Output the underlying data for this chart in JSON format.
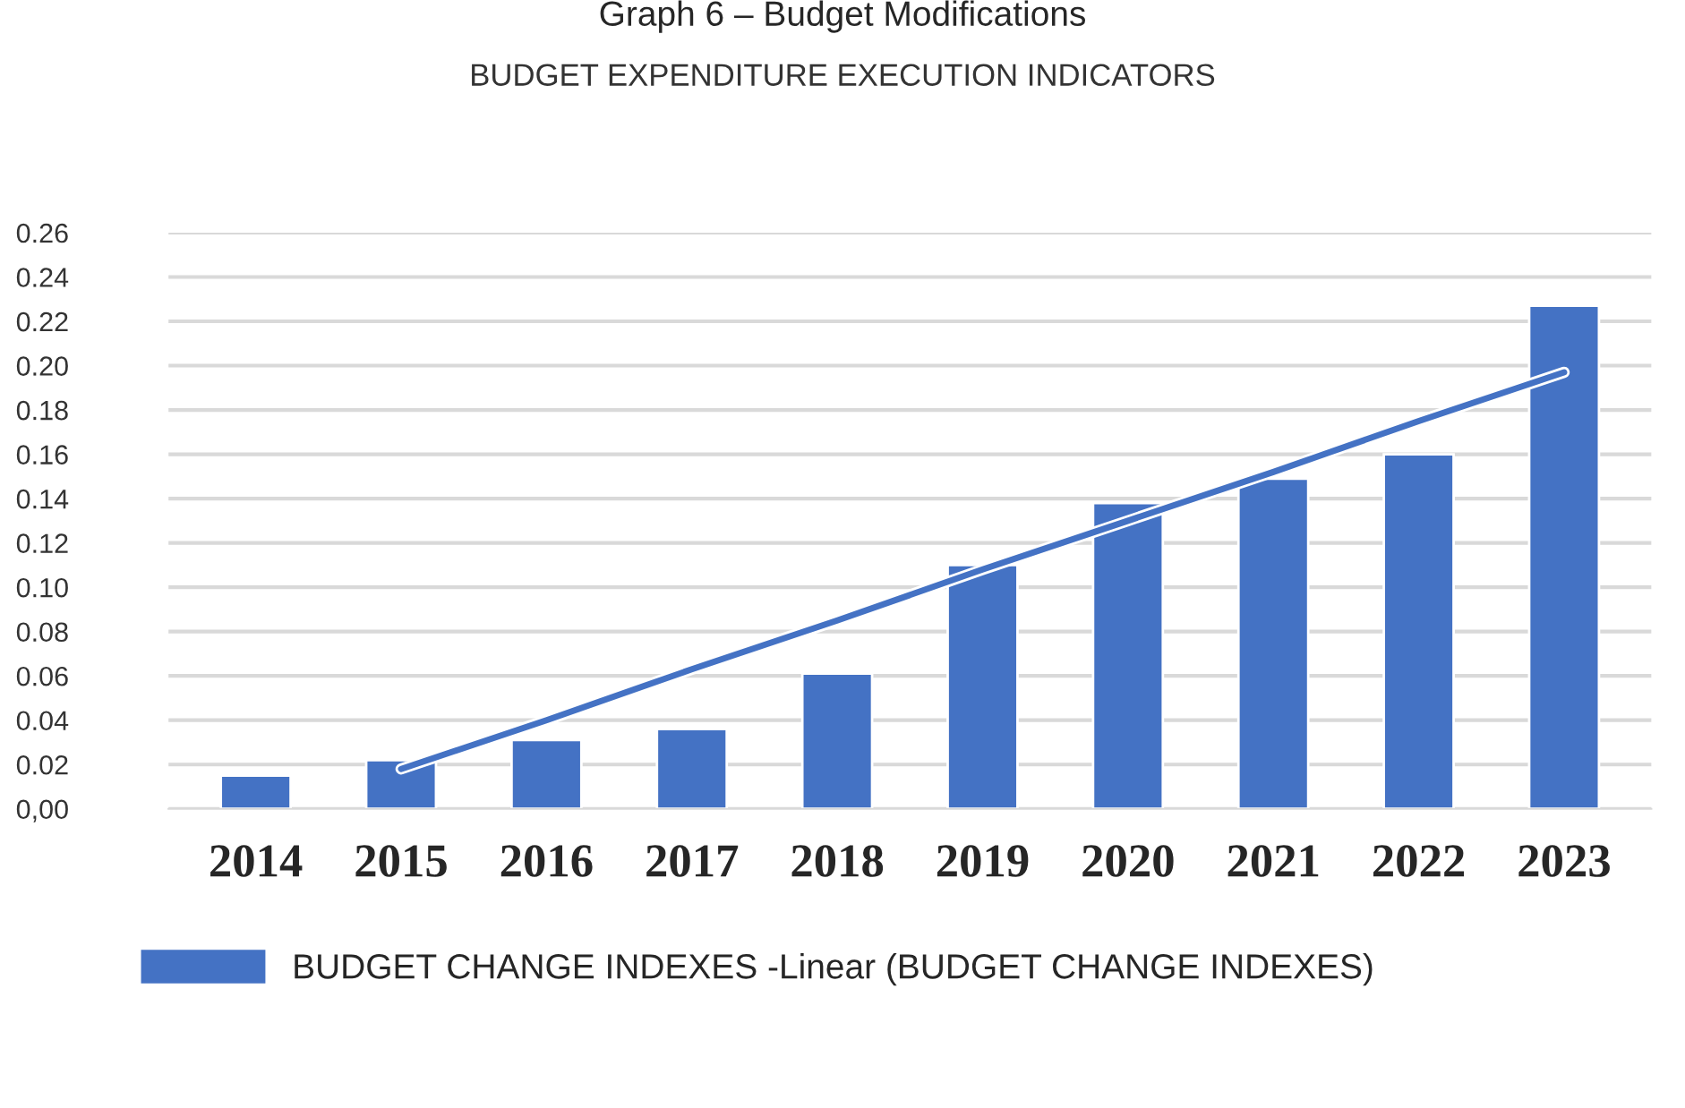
{
  "chart_data": {
    "type": "bar",
    "title": "Graph 6 – Budget Modifications",
    "subtitle": "BUDGET EXPENDITURE EXECUTION INDICATORS",
    "categories": [
      "2014",
      "2015",
      "2016",
      "2017",
      "2018",
      "2019",
      "2020",
      "2021",
      "2022",
      "2023"
    ],
    "series": [
      {
        "name": "BUDGET CHANGE INDEXES -Linear (BUDGET CHANGE INDEXES)",
        "color": "#4472c4",
        "values": [
          0.015,
          0.022,
          0.031,
          0.036,
          0.061,
          0.11,
          0.138,
          0.149,
          0.16,
          0.227
        ]
      },
      {
        "type": "line",
        "color": "#4472c4",
        "values": [
          null,
          0.018,
          0.04,
          0.063,
          0.085,
          0.108,
          0.13,
          0.152,
          0.175,
          0.197
        ]
      }
    ],
    "ylim": [
      0,
      0.26
    ],
    "yticks": [
      {
        "value": 0,
        "label": "0,00"
      },
      {
        "value": 0.02,
        "label": "0.02"
      },
      {
        "value": 0.04,
        "label": "0.04"
      },
      {
        "value": 0.06,
        "label": "0.06"
      },
      {
        "value": 0.08,
        "label": "0.08"
      },
      {
        "value": 0.1,
        "label": "0.10"
      },
      {
        "value": 0.12,
        "label": "0.12"
      },
      {
        "value": 0.14,
        "label": "0.14"
      },
      {
        "value": 0.16,
        "label": "0.16"
      },
      {
        "value": 0.18,
        "label": "0.18"
      },
      {
        "value": 0.2,
        "label": "0.20"
      },
      {
        "value": 0.22,
        "label": "0.22"
      },
      {
        "value": 0.24,
        "label": "0.24"
      },
      {
        "value": 0.26,
        "label": "0.26"
      }
    ],
    "grid": "y",
    "legend": "bottom"
  }
}
